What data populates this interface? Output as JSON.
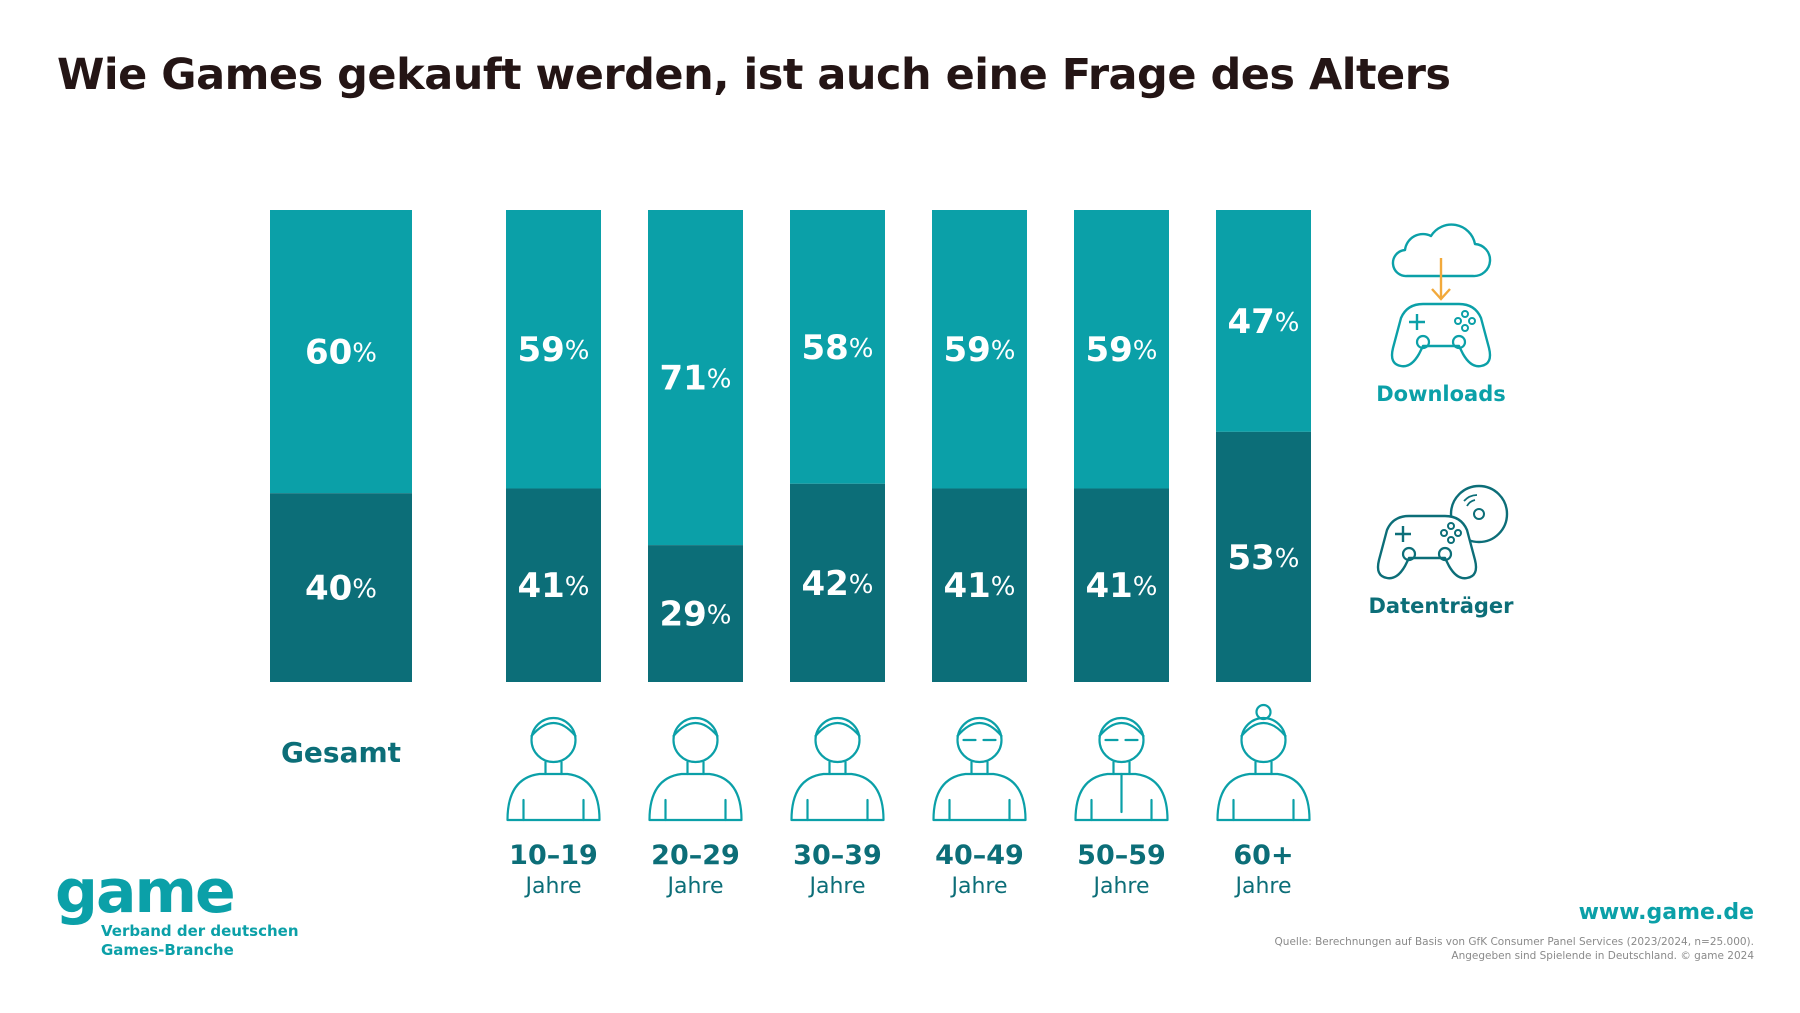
{
  "page": {
    "title": "Wie Games gekauft werden, ist auch eine Frage des Alters",
    "colors": {
      "downloads": "#0ba0a8",
      "datentraeger": "#0c6e78",
      "title": "#241515"
    }
  },
  "chart_data": {
    "type": "bar",
    "stacked": true,
    "title": "Wie Games gekauft werden, ist auch eine Frage des Alters",
    "categories": [
      "Gesamt",
      "10–19 Jahre",
      "20–29 Jahre",
      "30–39 Jahre",
      "40–49 Jahre",
      "50–59 Jahre",
      "60+ Jahre"
    ],
    "groups": [
      {
        "label": "Gesamt",
        "range": "",
        "unit": "",
        "icon": ""
      },
      {
        "label": "",
        "range": "10–19",
        "unit": "Jahre",
        "icon": "teen-girl-icon"
      },
      {
        "label": "",
        "range": "20–29",
        "unit": "Jahre",
        "icon": "young-man-icon"
      },
      {
        "label": "",
        "range": "30–39",
        "unit": "Jahre",
        "icon": "woman-icon"
      },
      {
        "label": "",
        "range": "40–49",
        "unit": "Jahre",
        "icon": "man-with-glasses-icon"
      },
      {
        "label": "",
        "range": "50–59",
        "unit": "Jahre",
        "icon": "older-man-icon"
      },
      {
        "label": "",
        "range": "60+",
        "unit": "Jahre",
        "icon": "senior-woman-icon"
      }
    ],
    "series": [
      {
        "name": "Downloads",
        "color": "#0ba0a8",
        "values": [
          60,
          59,
          71,
          58,
          59,
          59,
          47
        ],
        "labels": [
          "60%",
          "59%",
          "71%",
          "58%",
          "59%",
          "59%",
          "47%"
        ]
      },
      {
        "name": "Datenträger",
        "color": "#0c6e78",
        "values": [
          40,
          41,
          29,
          42,
          41,
          41,
          53
        ],
        "labels": [
          "40%",
          "41%",
          "29%",
          "42%",
          "41%",
          "41%",
          "53%"
        ]
      }
    ],
    "ylim": [
      0,
      100
    ],
    "legend": [
      "Downloads",
      "Datenträger"
    ],
    "legend_position": "right",
    "grid": false
  },
  "legend": {
    "downloads": {
      "label": "Downloads",
      "icon": "cloud-download-controller-icon"
    },
    "datentraeger": {
      "label": "Datenträger",
      "icon": "disc-controller-icon"
    }
  },
  "footer": {
    "logo_word": "game",
    "logo_sub_1": "Verband der deutschen",
    "logo_sub_2": "Games-Branche",
    "url": "www.game.de",
    "source_1": "Quelle: Berechnungen auf Basis von GfK Consumer Panel Services (2023/2024, n=25.000).",
    "source_2": "Angegeben sind Spielende in Deutschland. © game 2024"
  }
}
